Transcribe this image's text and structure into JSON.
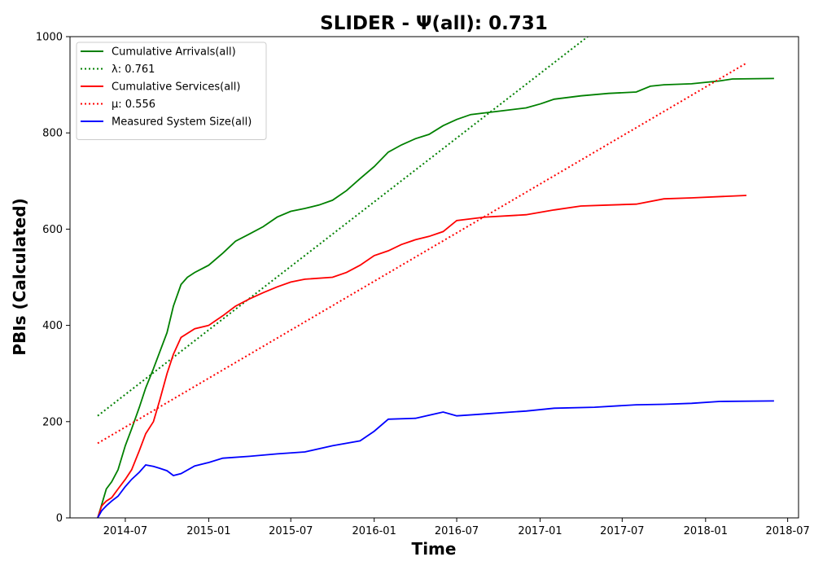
{
  "chart_data": {
    "type": "line",
    "title": "SLIDER -  Ψ(all): 0.731",
    "xlabel": "Time",
    "ylabel": "PBIs (Calculated)",
    "xlim": [
      "2014-03-01",
      "2018-07-25"
    ],
    "ylim": [
      0,
      1000
    ],
    "x_ticks": [
      "2014-07",
      "2015-01",
      "2015-07",
      "2016-01",
      "2016-07",
      "2017-01",
      "2017-07",
      "2018-01",
      "2018-07"
    ],
    "y_ticks": [
      0,
      200,
      400,
      600,
      800,
      1000
    ],
    "grid": false,
    "legend_position": "top-left",
    "colors": {
      "arrivals": "#008000",
      "services": "#ff0000",
      "system": "#0000ff"
    },
    "series": [
      {
        "name": "Cumulative Arrivals(all)",
        "key": "arrivals",
        "style": "solid",
        "points": [
          [
            "2014-05-01",
            0
          ],
          [
            "2014-05-10",
            28
          ],
          [
            "2014-05-20",
            60
          ],
          [
            "2014-06-01",
            75
          ],
          [
            "2014-06-15",
            100
          ],
          [
            "2014-07-01",
            150
          ],
          [
            "2014-07-15",
            185
          ],
          [
            "2014-08-01",
            230
          ],
          [
            "2014-08-15",
            270
          ],
          [
            "2014-09-01",
            310
          ],
          [
            "2014-09-15",
            345
          ],
          [
            "2014-10-01",
            385
          ],
          [
            "2014-10-15",
            440
          ],
          [
            "2014-11-01",
            485
          ],
          [
            "2014-11-15",
            500
          ],
          [
            "2014-12-01",
            510
          ],
          [
            "2015-01-01",
            525
          ],
          [
            "2015-02-01",
            550
          ],
          [
            "2015-03-01",
            575
          ],
          [
            "2015-04-01",
            590
          ],
          [
            "2015-05-01",
            605
          ],
          [
            "2015-06-01",
            625
          ],
          [
            "2015-07-01",
            637
          ],
          [
            "2015-08-01",
            643
          ],
          [
            "2015-09-01",
            650
          ],
          [
            "2015-10-01",
            660
          ],
          [
            "2015-11-01",
            680
          ],
          [
            "2015-12-01",
            705
          ],
          [
            "2016-01-01",
            730
          ],
          [
            "2016-02-01",
            760
          ],
          [
            "2016-03-01",
            775
          ],
          [
            "2016-04-01",
            788
          ],
          [
            "2016-05-01",
            797
          ],
          [
            "2016-06-01",
            815
          ],
          [
            "2016-07-01",
            828
          ],
          [
            "2016-08-01",
            838
          ],
          [
            "2016-10-01",
            845
          ],
          [
            "2016-12-01",
            852
          ],
          [
            "2017-01-01",
            860
          ],
          [
            "2017-02-01",
            870
          ],
          [
            "2017-04-01",
            877
          ],
          [
            "2017-06-01",
            882
          ],
          [
            "2017-08-01",
            885
          ],
          [
            "2017-09-01",
            897
          ],
          [
            "2017-10-01",
            900
          ],
          [
            "2017-12-01",
            902
          ],
          [
            "2018-01-01",
            905
          ],
          [
            "2018-02-01",
            908
          ],
          [
            "2018-03-01",
            912
          ],
          [
            "2018-06-01",
            913
          ]
        ]
      },
      {
        "name": "λ: 0.761",
        "key": "arrivals",
        "style": "dotted",
        "points": [
          [
            "2014-05-01",
            212
          ],
          [
            "2017-04-16",
            1000
          ]
        ]
      },
      {
        "name": "Cumulative Services(all)",
        "key": "services",
        "style": "solid",
        "points": [
          [
            "2014-05-01",
            0
          ],
          [
            "2014-05-10",
            25
          ],
          [
            "2014-05-20",
            35
          ],
          [
            "2014-06-01",
            42
          ],
          [
            "2014-06-15",
            60
          ],
          [
            "2014-07-01",
            80
          ],
          [
            "2014-07-15",
            100
          ],
          [
            "2014-08-01",
            140
          ],
          [
            "2014-08-15",
            175
          ],
          [
            "2014-09-01",
            200
          ],
          [
            "2014-09-15",
            245
          ],
          [
            "2014-10-01",
            300
          ],
          [
            "2014-10-15",
            340
          ],
          [
            "2014-11-01",
            375
          ],
          [
            "2014-12-01",
            393
          ],
          [
            "2015-01-01",
            400
          ],
          [
            "2015-02-01",
            420
          ],
          [
            "2015-03-01",
            440
          ],
          [
            "2015-04-01",
            455
          ],
          [
            "2015-05-01",
            468
          ],
          [
            "2015-06-01",
            480
          ],
          [
            "2015-07-01",
            490
          ],
          [
            "2015-08-01",
            496
          ],
          [
            "2015-10-01",
            500
          ],
          [
            "2015-11-01",
            510
          ],
          [
            "2015-12-01",
            525
          ],
          [
            "2016-01-01",
            545
          ],
          [
            "2016-02-01",
            555
          ],
          [
            "2016-03-01",
            568
          ],
          [
            "2016-04-01",
            578
          ],
          [
            "2016-05-01",
            585
          ],
          [
            "2016-06-01",
            595
          ],
          [
            "2016-07-01",
            618
          ],
          [
            "2016-09-01",
            625
          ],
          [
            "2016-12-01",
            630
          ],
          [
            "2017-02-01",
            640
          ],
          [
            "2017-04-01",
            648
          ],
          [
            "2017-06-01",
            650
          ],
          [
            "2017-08-01",
            652
          ],
          [
            "2017-10-01",
            663
          ],
          [
            "2017-12-01",
            665
          ],
          [
            "2018-04-01",
            670
          ]
        ]
      },
      {
        "name": "μ: 0.556",
        "key": "services",
        "style": "dotted",
        "points": [
          [
            "2014-05-01",
            155
          ],
          [
            "2018-04-01",
            945
          ]
        ]
      },
      {
        "name": "Measured System Size(all)",
        "key": "system",
        "style": "solid",
        "points": [
          [
            "2014-05-01",
            0
          ],
          [
            "2014-05-10",
            15
          ],
          [
            "2014-05-20",
            25
          ],
          [
            "2014-06-01",
            35
          ],
          [
            "2014-06-15",
            45
          ],
          [
            "2014-07-01",
            65
          ],
          [
            "2014-07-15",
            80
          ],
          [
            "2014-08-01",
            95
          ],
          [
            "2014-08-15",
            110
          ],
          [
            "2014-09-01",
            107
          ],
          [
            "2014-09-15",
            103
          ],
          [
            "2014-10-01",
            98
          ],
          [
            "2014-10-15",
            88
          ],
          [
            "2014-11-01",
            92
          ],
          [
            "2014-12-01",
            108
          ],
          [
            "2015-01-01",
            115
          ],
          [
            "2015-02-01",
            124
          ],
          [
            "2015-04-01",
            128
          ],
          [
            "2015-06-01",
            133
          ],
          [
            "2015-08-01",
            137
          ],
          [
            "2015-10-01",
            150
          ],
          [
            "2015-12-01",
            160
          ],
          [
            "2016-01-01",
            180
          ],
          [
            "2016-02-01",
            205
          ],
          [
            "2016-04-01",
            207
          ],
          [
            "2016-06-01",
            220
          ],
          [
            "2016-07-01",
            212
          ],
          [
            "2016-09-01",
            216
          ],
          [
            "2016-12-01",
            222
          ],
          [
            "2017-02-01",
            228
          ],
          [
            "2017-05-01",
            230
          ],
          [
            "2017-08-01",
            235
          ],
          [
            "2017-10-01",
            236
          ],
          [
            "2017-12-01",
            238
          ],
          [
            "2018-02-01",
            242
          ],
          [
            "2018-06-01",
            243
          ]
        ]
      }
    ]
  }
}
